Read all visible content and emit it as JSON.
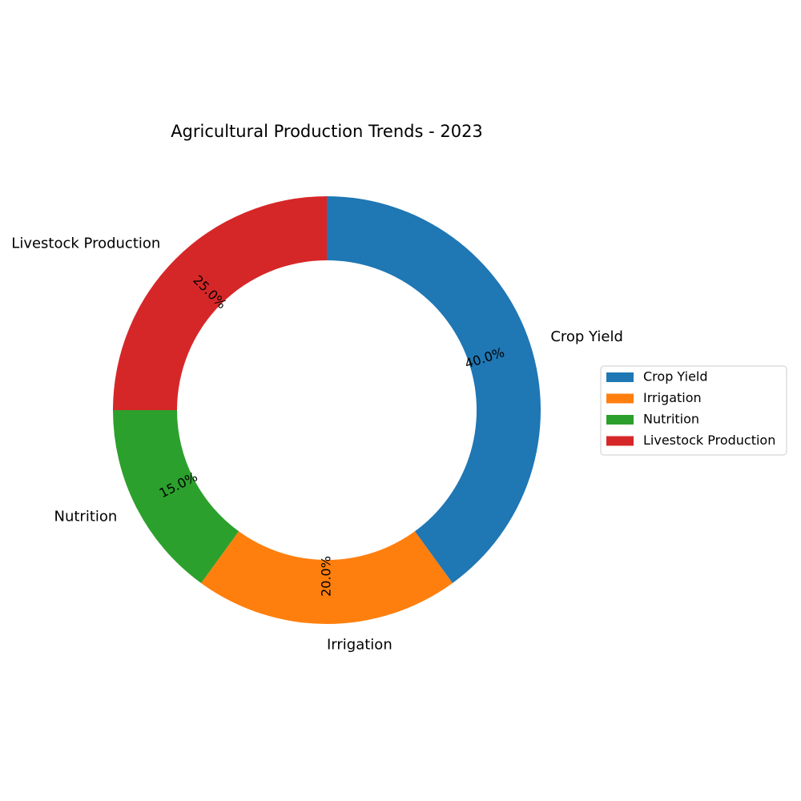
{
  "chart_data": {
    "type": "pie",
    "variant": "donut",
    "title": "Agricultural Production Trends - 2023",
    "categories": [
      "Crop Yield",
      "Irrigation",
      "Nutrition",
      "Livestock Production"
    ],
    "values": [
      40,
      20,
      15,
      25
    ],
    "percent_labels": [
      "40.0%",
      "20.0%",
      "15.0%",
      "25.0%"
    ],
    "colors": [
      "#1f77b4",
      "#ff7f0e",
      "#2ca02c",
      "#d62728"
    ],
    "start_angle_deg": 90,
    "direction": "clockwise",
    "legend": {
      "placement": "right",
      "entries": [
        "Crop Yield",
        "Irrigation",
        "Nutrition",
        "Livestock Production"
      ]
    }
  }
}
